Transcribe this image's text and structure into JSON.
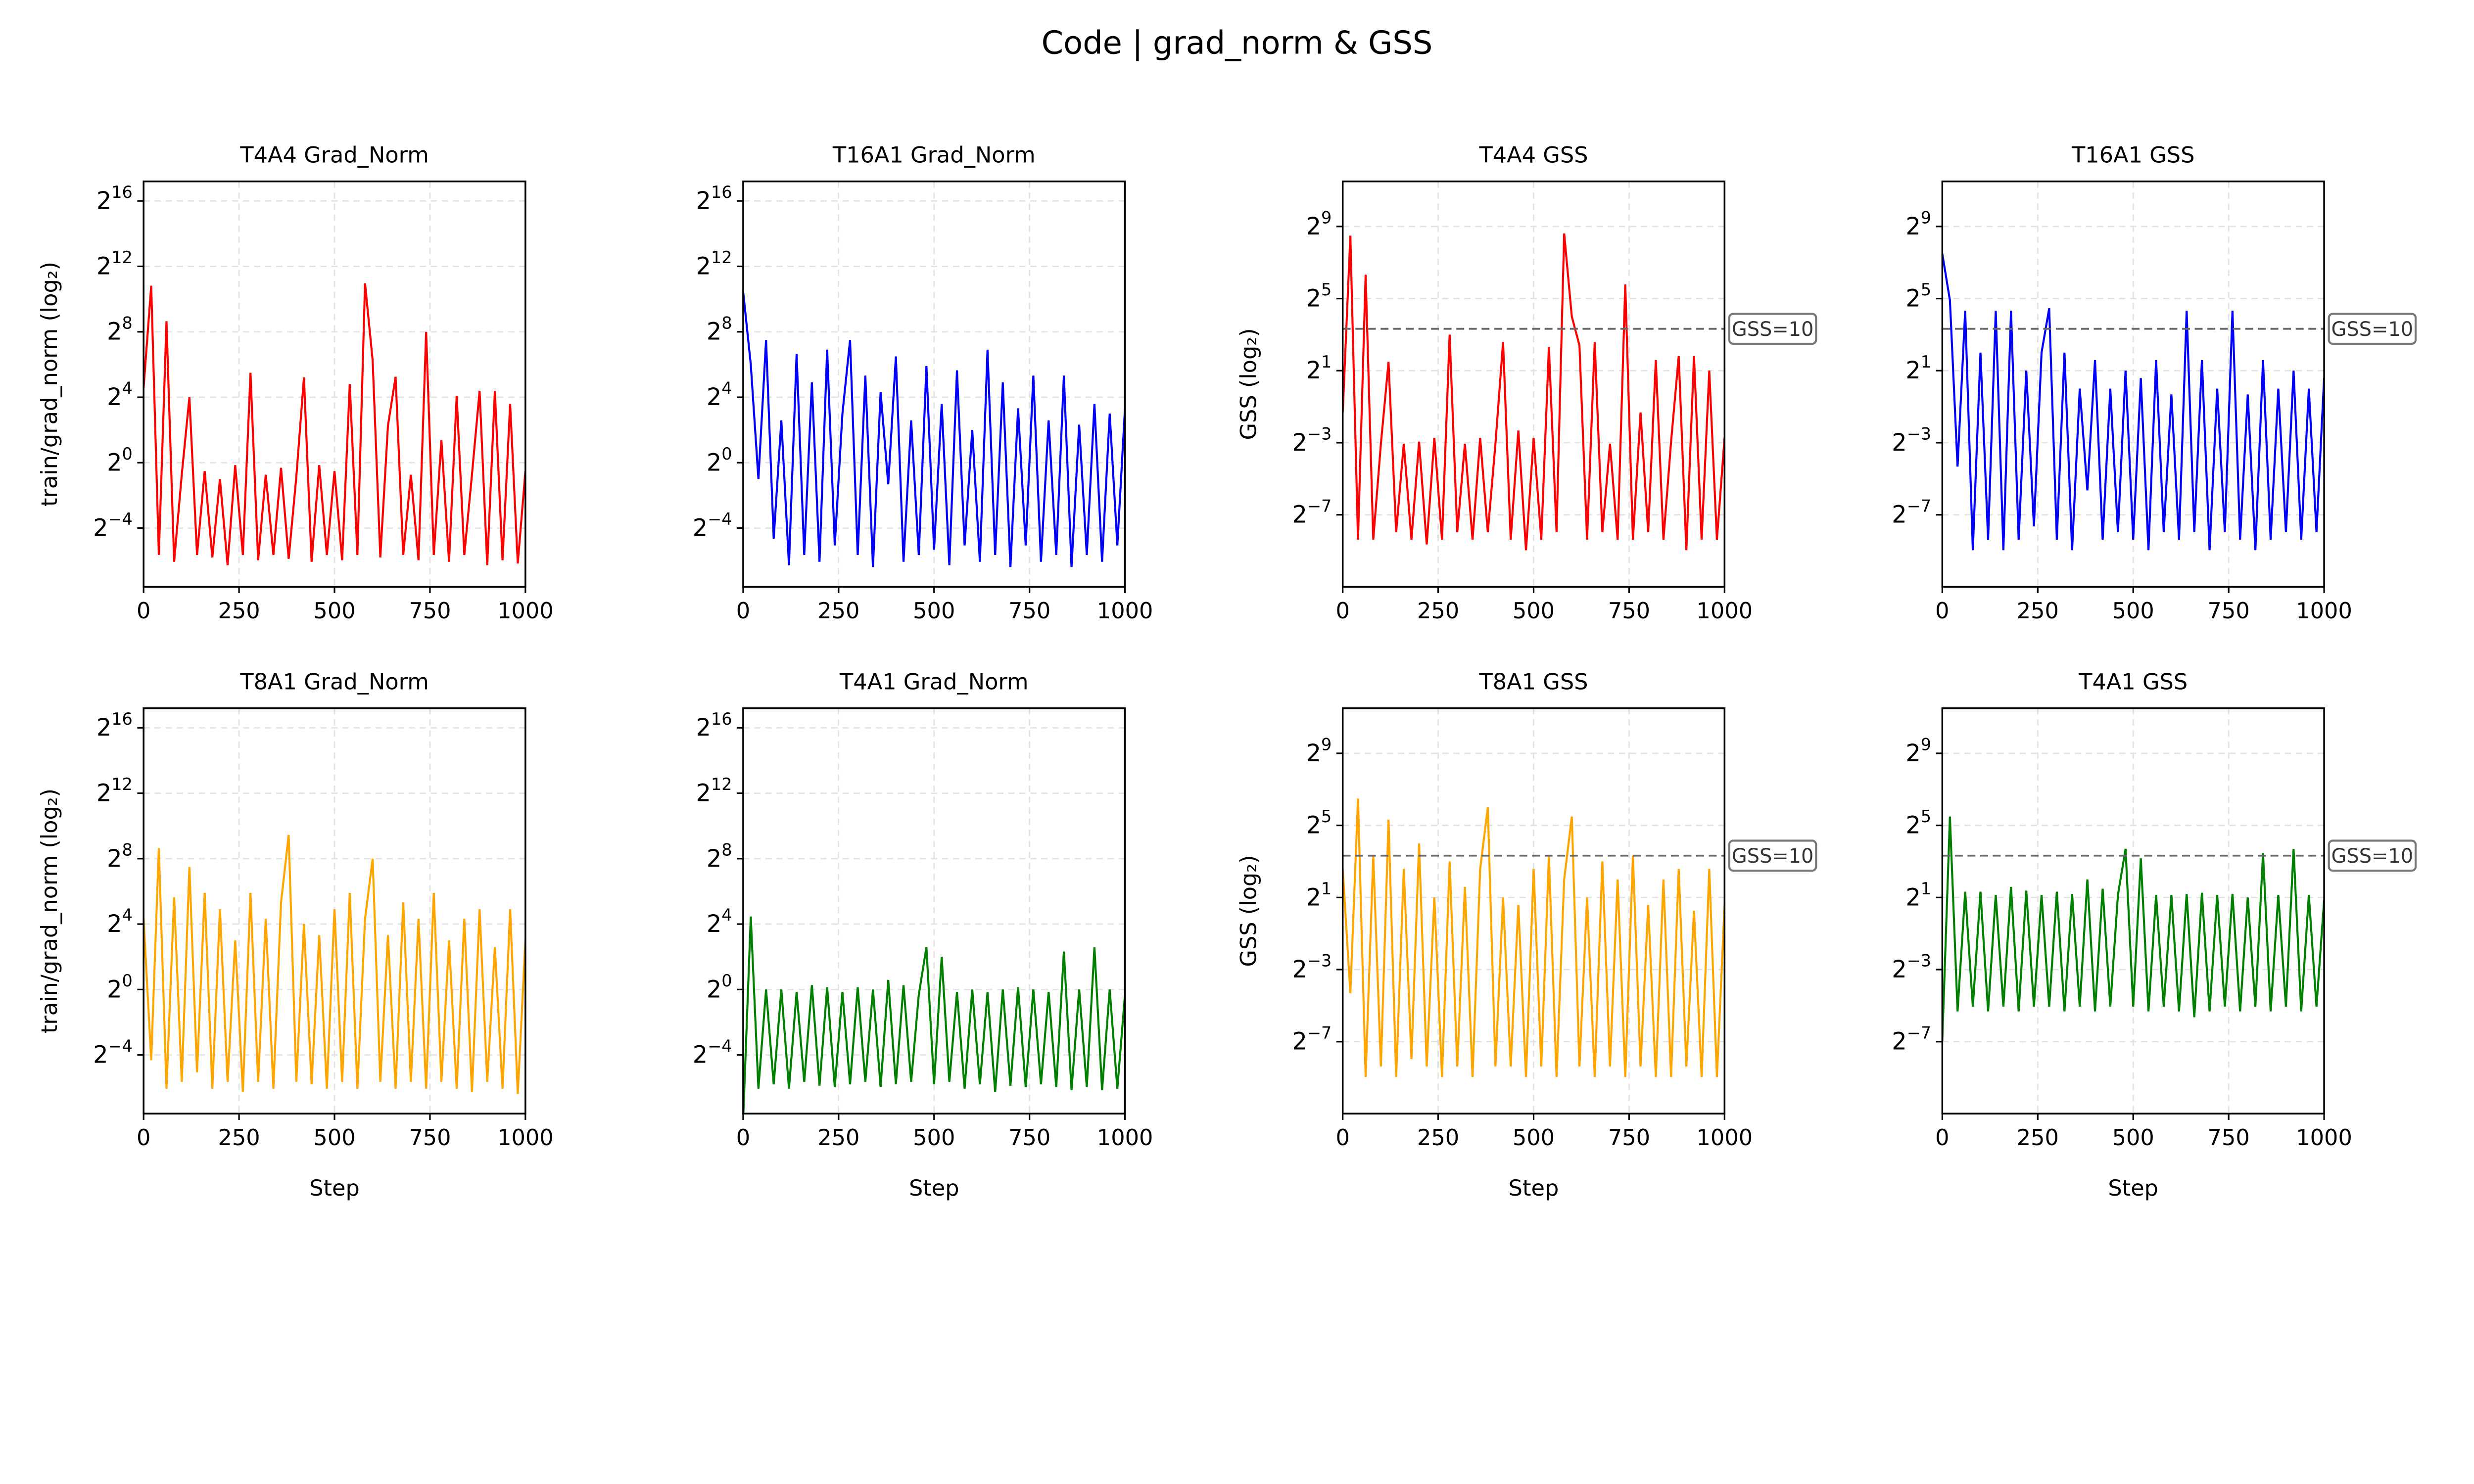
{
  "chart_data": {
    "type": "line",
    "title": "Code | grad_norm & GSS",
    "layout": "2 rows x 4 columns",
    "grid": true,
    "x": [
      0,
      20,
      40,
      60,
      80,
      100,
      120,
      140,
      160,
      180,
      200,
      220,
      240,
      260,
      280,
      300,
      320,
      340,
      360,
      380,
      400,
      420,
      440,
      460,
      480,
      500,
      520,
      540,
      560,
      580,
      600,
      620,
      640,
      660,
      680,
      700,
      720,
      740,
      760,
      780,
      800,
      820,
      840,
      860,
      880,
      900,
      920,
      940,
      960,
      980,
      1000
    ],
    "xlim": [
      0,
      1000
    ],
    "xticks": [
      "0",
      "250",
      "500",
      "750",
      "1000"
    ],
    "panels": [
      {
        "title": "T4A4 Grad_Norm",
        "ylabel": "train/grad_norm (log₂)",
        "xlabel": "",
        "color": "#ff0000",
        "yscale": "log2",
        "ylim": [
          0.0052,
          150000
        ],
        "yticks": [
          65536,
          4096,
          256,
          16,
          1,
          0.0625
        ],
        "ytick_labels": [
          [
            "2",
            "16"
          ],
          [
            "2",
            "12"
          ],
          [
            "2",
            "8"
          ],
          [
            "2",
            "4"
          ],
          [
            "2",
            "0"
          ],
          [
            "2",
            "−4"
          ]
        ],
        "values": [
          24,
          1800,
          0.02,
          400,
          0.015,
          0.6,
          16,
          0.02,
          0.7,
          0.018,
          0.5,
          0.013,
          0.9,
          0.02,
          45,
          0.016,
          0.6,
          0.02,
          0.8,
          0.017,
          0.55,
          37,
          0.015,
          0.9,
          0.02,
          0.7,
          0.016,
          28,
          0.02,
          2000,
          75,
          0.018,
          4.8,
          38,
          0.02,
          0.6,
          0.016,
          256,
          0.02,
          2.6,
          0.015,
          17,
          0.02,
          0.6,
          21,
          0.013,
          21,
          0.016,
          12,
          0.014,
          0.7
        ]
      },
      {
        "title": "T16A1 Grad_Norm",
        "ylabel": "",
        "xlabel": "",
        "color": "#0000ff",
        "yscale": "log2",
        "ylim": [
          0.0052,
          150000
        ],
        "yticks": [
          65536,
          4096,
          256,
          16,
          1,
          0.0625
        ],
        "ytick_labels": [
          [
            "2",
            "16"
          ],
          [
            "2",
            "12"
          ],
          [
            "2",
            "8"
          ],
          [
            "2",
            "4"
          ],
          [
            "2",
            "0"
          ],
          [
            "2",
            "−4"
          ]
        ],
        "values": [
          1400,
          64,
          0.5,
          180,
          0.04,
          6,
          0.013,
          100,
          0.02,
          30,
          0.015,
          120,
          0.03,
          8,
          180,
          0.02,
          40,
          0.012,
          20,
          0.4,
          90,
          0.015,
          6,
          0.02,
          60,
          0.025,
          12,
          0.013,
          50,
          0.03,
          4,
          0.015,
          120,
          0.02,
          30,
          0.012,
          10,
          0.03,
          40,
          0.015,
          6,
          0.02,
          40,
          0.012,
          5,
          0.02,
          12,
          0.015,
          8,
          0.03,
          10
        ]
      },
      {
        "title": "T4A4 GSS",
        "ylabel": "GSS (log₂)",
        "xlabel": "",
        "color": "#ff0000",
        "yscale": "log2",
        "ylim": [
          0.00049,
          2900
        ],
        "yticks": [
          512,
          32,
          2,
          0.125,
          0.0078125
        ],
        "ytick_labels": [
          [
            "2",
            "9"
          ],
          [
            "2",
            "5"
          ],
          [
            "2",
            "1"
          ],
          [
            "2",
            "−3"
          ],
          [
            "2",
            "−7"
          ]
        ],
        "hline": {
          "value": 10,
          "label": "GSS=10"
        },
        "values": [
          0.4,
          360,
          0.003,
          80,
          0.003,
          0.12,
          2.8,
          0.004,
          0.12,
          0.003,
          0.13,
          0.0025,
          0.15,
          0.003,
          8,
          0.004,
          0.12,
          0.003,
          0.15,
          0.004,
          0.12,
          6,
          0.003,
          0.2,
          0.002,
          0.15,
          0.003,
          5,
          0.004,
          390,
          16,
          5.3,
          0.003,
          6,
          0.004,
          0.12,
          0.003,
          55,
          0.003,
          0.4,
          0.004,
          3,
          0.003,
          0.13,
          3.5,
          0.002,
          3.5,
          0.003,
          2,
          0.003,
          0.15
        ]
      },
      {
        "title": "T16A1 GSS",
        "ylabel": "",
        "xlabel": "",
        "color": "#0000ff",
        "yscale": "log2",
        "ylim": [
          0.00049,
          2900
        ],
        "yticks": [
          512,
          32,
          2,
          0.125,
          0.0078125
        ],
        "ytick_labels": [
          [
            "2",
            "9"
          ],
          [
            "2",
            "5"
          ],
          [
            "2",
            "1"
          ],
          [
            "2",
            "−3"
          ],
          [
            "2",
            "−7"
          ]
        ],
        "hline": {
          "value": 10,
          "label": "GSS=10"
        },
        "values": [
          180,
          30,
          0.05,
          20,
          0.002,
          4,
          0.003,
          20,
          0.002,
          20,
          0.003,
          2,
          0.005,
          4,
          22,
          0.003,
          4,
          0.002,
          1,
          0.02,
          3,
          0.003,
          1,
          0.004,
          2,
          0.003,
          1.5,
          0.002,
          3,
          0.004,
          0.8,
          0.003,
          20,
          0.004,
          3,
          0.002,
          1,
          0.004,
          20,
          0.003,
          0.8,
          0.002,
          3,
          0.003,
          1,
          0.004,
          2,
          0.003,
          1,
          0.004,
          1.5
        ]
      },
      {
        "title": "T8A1 Grad_Norm",
        "ylabel": "train/grad_norm (log₂)",
        "xlabel": "Step",
        "color": "#ffa500",
        "yscale": "log2",
        "ylim": [
          0.0052,
          150000
        ],
        "yticks": [
          65536,
          4096,
          256,
          16,
          1,
          0.0625
        ],
        "ytick_labels": [
          [
            "2",
            "16"
          ],
          [
            "2",
            "12"
          ],
          [
            "2",
            "8"
          ],
          [
            "2",
            "4"
          ],
          [
            "2",
            "0"
          ],
          [
            "2",
            "−4"
          ]
        ],
        "values": [
          20,
          0.05,
          400,
          0.015,
          50,
          0.02,
          180,
          0.03,
          60,
          0.015,
          30,
          0.02,
          8,
          0.013,
          60,
          0.02,
          20,
          0.015,
          40,
          700,
          0.02,
          16,
          0.018,
          10,
          0.015,
          30,
          0.02,
          60,
          0.015,
          20,
          256,
          0.02,
          10,
          0.015,
          40,
          0.02,
          20,
          0.015,
          60,
          0.02,
          8,
          0.015,
          20,
          0.013,
          30,
          0.02,
          6,
          0.015,
          30,
          0.012,
          8
        ]
      },
      {
        "title": "T4A1 Grad_Norm",
        "ylabel": "",
        "xlabel": "Step",
        "color": "#008000",
        "yscale": "log2",
        "ylim": [
          0.0052,
          150000
        ],
        "yticks": [
          65536,
          4096,
          256,
          16,
          1,
          0.0625
        ],
        "ytick_labels": [
          [
            "2",
            "16"
          ],
          [
            "2",
            "12"
          ],
          [
            "2",
            "8"
          ],
          [
            "2",
            "4"
          ],
          [
            "2",
            "0"
          ],
          [
            "2",
            "−4"
          ]
        ],
        "values": [
          0.004,
          22,
          0.015,
          1,
          0.018,
          1,
          0.015,
          0.9,
          0.02,
          1.2,
          0.017,
          1.1,
          0.016,
          0.9,
          0.018,
          1.1,
          0.02,
          1,
          0.016,
          1.5,
          0.018,
          1.2,
          0.02,
          0.8,
          6,
          0.018,
          4,
          0.02,
          0.9,
          0.015,
          1,
          0.018,
          0.9,
          0.013,
          1,
          0.017,
          1.1,
          0.016,
          1,
          0.018,
          0.9,
          0.016,
          5,
          0.014,
          1,
          0.016,
          6,
          0.014,
          1,
          0.015,
          0.8
        ]
      },
      {
        "title": "T8A1 GSS",
        "ylabel": "GSS (log₂)",
        "xlabel": "Step",
        "color": "#ffa500",
        "yscale": "log2",
        "ylim": [
          0.00049,
          2900
        ],
        "yticks": [
          512,
          32,
          2,
          0.125,
          0.0078125
        ],
        "ytick_labels": [
          [
            "2",
            "9"
          ],
          [
            "2",
            "5"
          ],
          [
            "2",
            "1"
          ],
          [
            "2",
            "−3"
          ],
          [
            "2",
            "−7"
          ]
        ],
        "hline": {
          "value": 10,
          "label": "GSS=10"
        },
        "values": [
          6,
          0.05,
          90,
          0.002,
          10,
          0.003,
          40,
          0.002,
          6,
          0.004,
          16,
          0.003,
          2,
          0.002,
          8,
          0.003,
          3,
          0.002,
          6,
          64,
          0.003,
          2,
          0.003,
          1.5,
          0.002,
          6,
          0.003,
          10,
          0.002,
          4,
          45,
          0.003,
          2,
          0.002,
          8,
          0.003,
          4,
          0.002,
          10,
          0.003,
          1.5,
          0.002,
          4,
          0.002,
          6,
          0.003,
          1.2,
          0.002,
          6,
          0.002,
          1.5
        ]
      },
      {
        "title": "T4A1 GSS",
        "ylabel": "",
        "xlabel": "Step",
        "color": "#008000",
        "yscale": "log2",
        "ylim": [
          0.00049,
          2900
        ],
        "yticks": [
          512,
          32,
          2,
          0.125,
          0.0078125
        ],
        "ytick_labels": [
          [
            "2",
            "9"
          ],
          [
            "2",
            "5"
          ],
          [
            "2",
            "1"
          ],
          [
            "2",
            "−3"
          ],
          [
            "2",
            "−7"
          ]
        ],
        "hline": {
          "value": 10,
          "label": "GSS=10"
        },
        "values": [
          0.008,
          45,
          0.025,
          2.5,
          0.03,
          2.5,
          0.025,
          2.2,
          0.03,
          3,
          0.025,
          2.6,
          0.03,
          2.2,
          0.03,
          2.5,
          0.025,
          2.3,
          0.03,
          4,
          0.025,
          2.8,
          0.03,
          2.2,
          13,
          0.03,
          9,
          0.025,
          2.2,
          0.03,
          2.2,
          0.025,
          2.3,
          0.02,
          2.4,
          0.025,
          2.2,
          0.03,
          2.3,
          0.025,
          2,
          0.03,
          11,
          0.025,
          2.2,
          0.03,
          13,
          0.025,
          2.2,
          0.03,
          1.8
        ]
      }
    ]
  }
}
